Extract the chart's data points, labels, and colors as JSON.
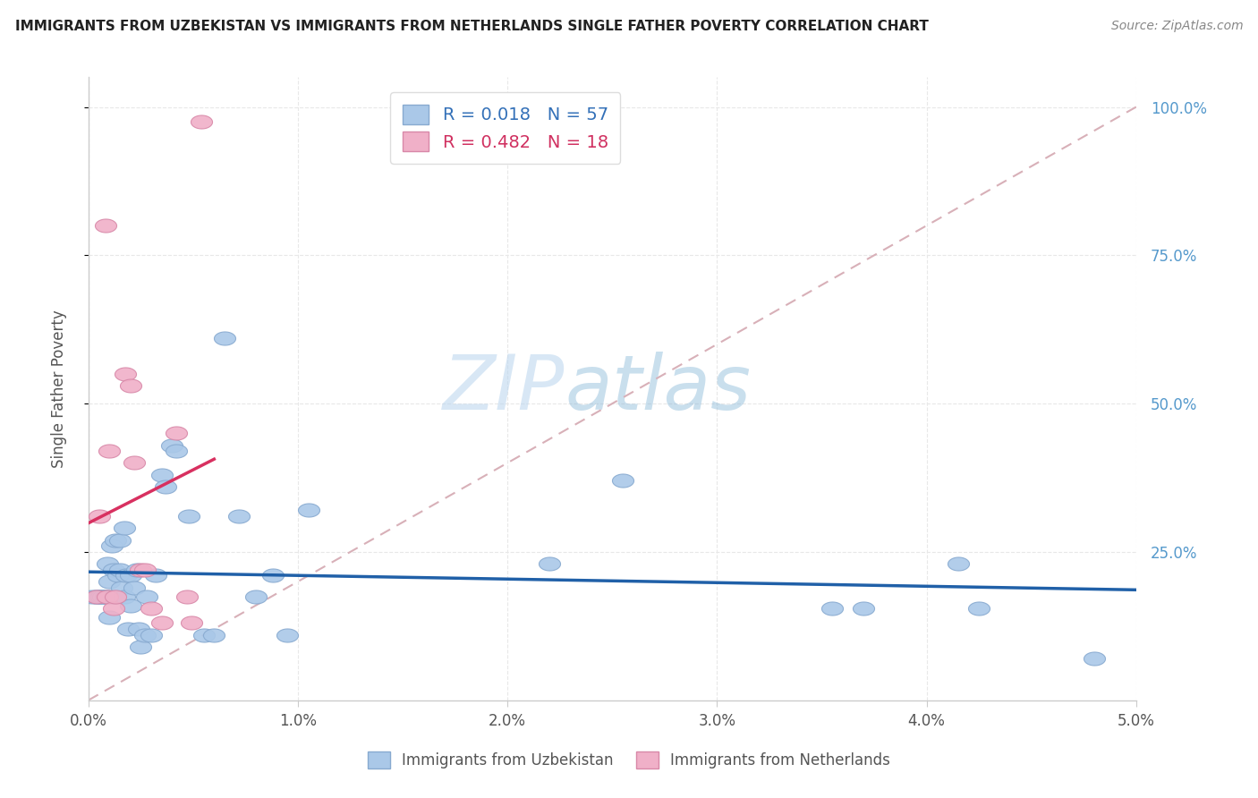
{
  "title": "IMMIGRANTS FROM UZBEKISTAN VS IMMIGRANTS FROM NETHERLANDS SINGLE FATHER POVERTY CORRELATION CHART",
  "source": "Source: ZipAtlas.com",
  "ylabel": "Single Father Poverty",
  "watermark_zip": "ZIP",
  "watermark_atlas": "atlas",
  "x_tick_labels": [
    "0.0%",
    "1.0%",
    "2.0%",
    "3.0%",
    "4.0%",
    "5.0%"
  ],
  "y_tick_labels_right": [
    "25.0%",
    "50.0%",
    "75.0%",
    "100.0%"
  ],
  "xlim": [
    0.0,
    5.0
  ],
  "ylim": [
    0.0,
    1.05
  ],
  "series1_label": "Immigrants from Uzbekistan",
  "series1_color": "#aac8e8",
  "series1_edge_color": "#88aad0",
  "series1_R": "0.018",
  "series1_N": "57",
  "series1_trend_color": "#2060a8",
  "series2_label": "Immigrants from Netherlands",
  "series2_color": "#f0b0c8",
  "series2_edge_color": "#d888a8",
  "series2_R": "0.482",
  "series2_N": "18",
  "series2_trend_color": "#d83060",
  "diag_line_color": "#d8b0b8",
  "background_color": "#ffffff",
  "grid_color": "#e8e8e8",
  "right_axis_color": "#5599cc",
  "title_color": "#222222",
  "source_color": "#888888",
  "ylabel_color": "#555555",
  "legend_edge_color": "#dddddd",
  "legend_text_color1": "#3370b8",
  "legend_text_color2": "#d03060",
  "uzbekistan_x": [
    0.02,
    0.04,
    0.04,
    0.05,
    0.06,
    0.06,
    0.07,
    0.08,
    0.08,
    0.09,
    0.09,
    0.1,
    0.1,
    0.1,
    0.11,
    0.12,
    0.12,
    0.13,
    0.13,
    0.14,
    0.15,
    0.15,
    0.16,
    0.17,
    0.17,
    0.18,
    0.19,
    0.2,
    0.2,
    0.22,
    0.23,
    0.24,
    0.25,
    0.27,
    0.28,
    0.3,
    0.32,
    0.35,
    0.37,
    0.4,
    0.42,
    0.48,
    0.55,
    0.6,
    0.65,
    0.72,
    0.8,
    0.88,
    0.95,
    1.05,
    2.2,
    2.55,
    3.55,
    3.7,
    4.15,
    4.25,
    4.8
  ],
  "uzbekistan_y": [
    0.175,
    0.175,
    0.175,
    0.175,
    0.175,
    0.175,
    0.175,
    0.175,
    0.175,
    0.175,
    0.23,
    0.175,
    0.14,
    0.2,
    0.26,
    0.175,
    0.22,
    0.175,
    0.27,
    0.21,
    0.22,
    0.27,
    0.19,
    0.29,
    0.175,
    0.21,
    0.12,
    0.16,
    0.21,
    0.19,
    0.22,
    0.12,
    0.09,
    0.11,
    0.175,
    0.11,
    0.21,
    0.38,
    0.36,
    0.43,
    0.42,
    0.31,
    0.11,
    0.11,
    0.61,
    0.31,
    0.175,
    0.21,
    0.11,
    0.32,
    0.23,
    0.37,
    0.155,
    0.155,
    0.23,
    0.155,
    0.07
  ],
  "netherlands_x": [
    0.04,
    0.05,
    0.08,
    0.09,
    0.1,
    0.12,
    0.13,
    0.175,
    0.2,
    0.22,
    0.25,
    0.27,
    0.3,
    0.35,
    0.42,
    0.47,
    0.49,
    0.54
  ],
  "netherlands_y": [
    0.175,
    0.31,
    0.8,
    0.175,
    0.42,
    0.155,
    0.175,
    0.55,
    0.53,
    0.4,
    0.22,
    0.22,
    0.155,
    0.13,
    0.45,
    0.175,
    0.13,
    0.975
  ]
}
